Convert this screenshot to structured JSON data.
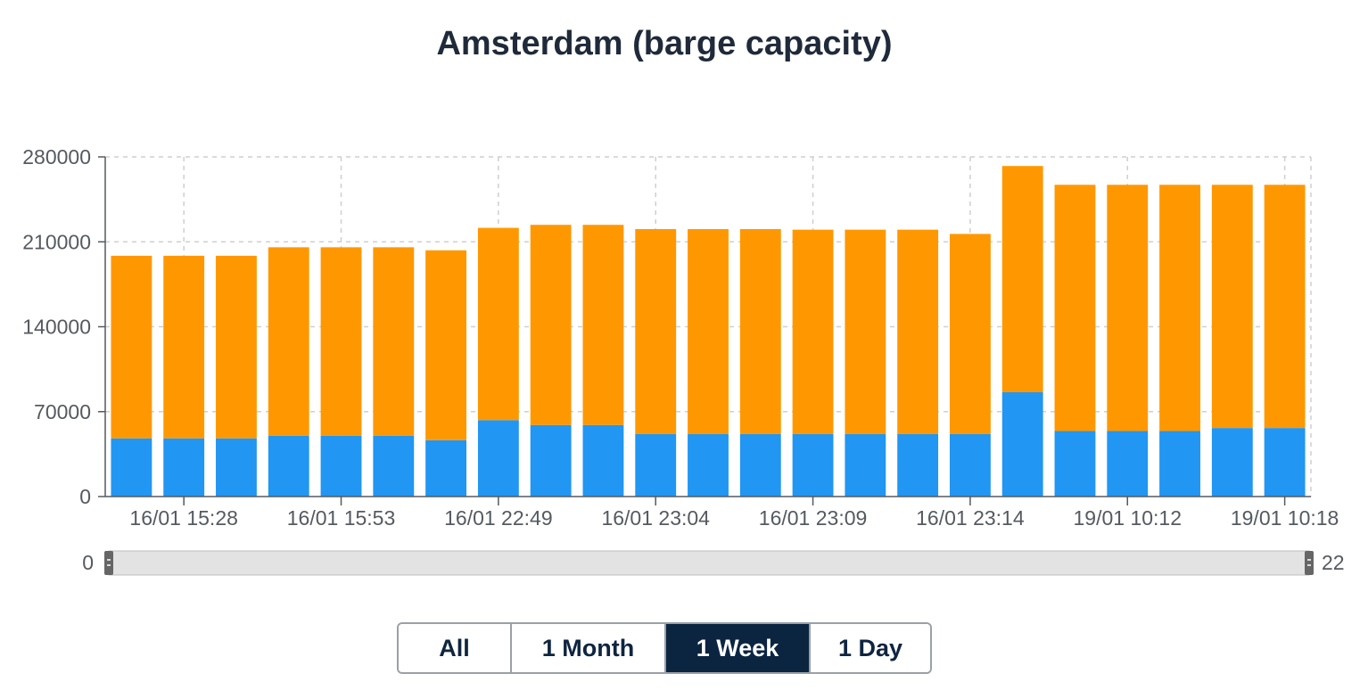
{
  "chart_data": {
    "type": "bar",
    "stacked": true,
    "title": "Amsterdam (barge capacity)",
    "xlabel": "",
    "ylabel": "",
    "ylim": [
      0,
      280000
    ],
    "yticks": [
      0,
      70000,
      140000,
      210000,
      280000
    ],
    "grid": true,
    "xtick_labels": [
      "16/01 15:28",
      "16/01 15:53",
      "16/01 22:49",
      "16/01 23:04",
      "16/01 23:09",
      "16/01 23:14",
      "19/01 10:12",
      "19/01 10:18"
    ],
    "series": [
      {
        "color": "#2196f3",
        "values": [
          48000,
          48000,
          48000,
          50000,
          50000,
          50000,
          46500,
          63000,
          59000,
          59000,
          51500,
          51500,
          51500,
          51500,
          51500,
          51500,
          51500,
          86000,
          54000,
          54000,
          54000,
          56500,
          56500
        ]
      },
      {
        "color": "#ff9800",
        "values": [
          150500,
          150500,
          150500,
          155500,
          155500,
          155500,
          156500,
          158500,
          165000,
          165000,
          169000,
          169000,
          169000,
          168500,
          168500,
          168500,
          165000,
          186500,
          203000,
          203000,
          203000,
          200500,
          200500
        ]
      }
    ],
    "navigator": {
      "min_label": "0",
      "max_label": "22"
    }
  },
  "range_buttons": [
    "All",
    "1 Month",
    "1 Week",
    "1 Day"
  ],
  "active_range": "1 Week"
}
